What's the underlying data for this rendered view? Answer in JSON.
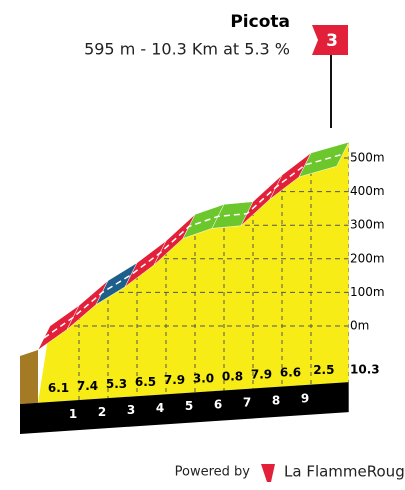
{
  "chart_data": {
    "type": "climb-profile",
    "title": "Picota",
    "subtitle": "595 m - 10.3 Km at 5.3 %",
    "category": "3",
    "x": [
      0,
      1,
      2,
      3,
      4,
      5,
      6,
      7,
      8,
      9,
      10.3
    ],
    "elevation": [
      0,
      61,
      135,
      188,
      253,
      332,
      362,
      370,
      449,
      515,
      547
    ],
    "gradients": [
      6.1,
      7.4,
      5.3,
      6.5,
      7.9,
      3.0,
      0.8,
      7.9,
      6.6,
      2.5
    ],
    "value_labels": [
      "6.1",
      "7.4",
      "5.3",
      "6.5",
      "7.9",
      "3.0",
      "0.8",
      "7.9",
      "6.6",
      "2.5"
    ],
    "segment_colors": [
      "#e3203a",
      "#e3203a",
      "#1d5e8a",
      "#e3203a",
      "#e3203a",
      "#6cc72c",
      "#6cc72c",
      "#e3203a",
      "#e3203a",
      "#6cc72c"
    ],
    "xticks": [
      1,
      2,
      3,
      4,
      5,
      6,
      7,
      8,
      9,
      10.3
    ],
    "yticks": [
      {
        "value": 0,
        "label": "0m"
      },
      {
        "value": 100,
        "label": "100m"
      },
      {
        "value": 200,
        "label": "200m"
      },
      {
        "value": 300,
        "label": "300m"
      },
      {
        "value": 400,
        "label": "400m"
      },
      {
        "value": 500,
        "label": "500m"
      }
    ],
    "fill_color": "#f7ec16",
    "footer": {
      "powered": "Powered by",
      "brand": "La FlammeRouge"
    }
  }
}
